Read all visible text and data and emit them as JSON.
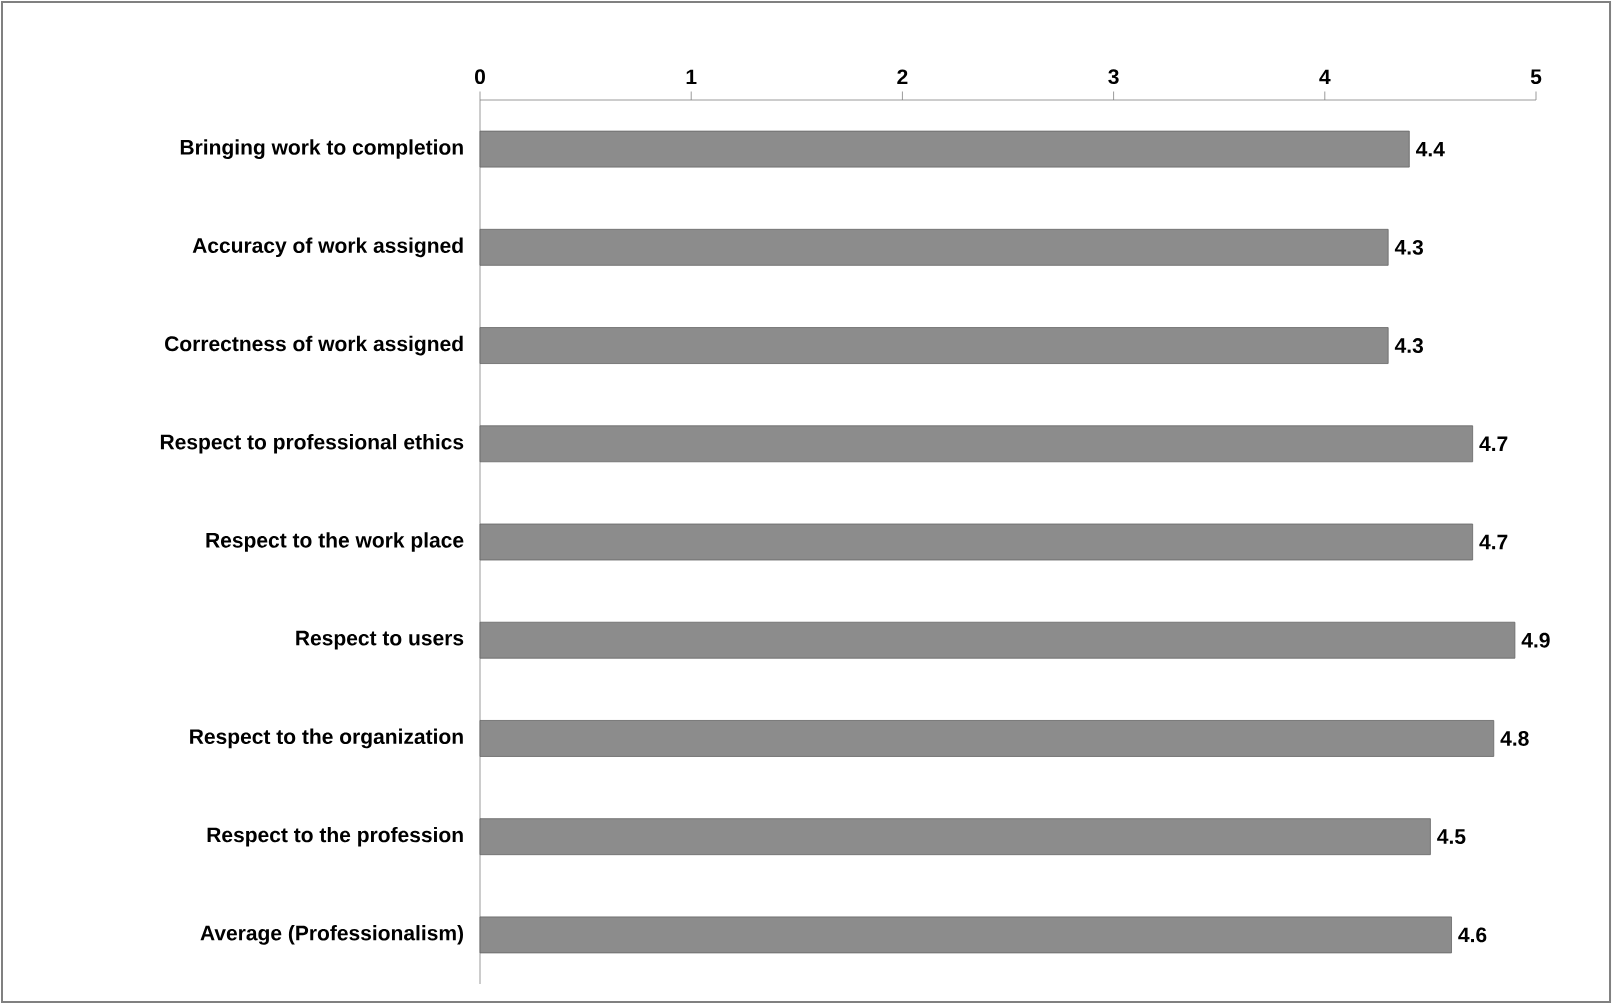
{
  "chart_data": {
    "type": "bar",
    "orientation": "horizontal",
    "categories": [
      "Bringing work to completion",
      "Accuracy of work assigned",
      "Correctness of work assigned",
      "Respect to professional ethics",
      "Respect to the work place",
      "Respect to users",
      "Respect to the organization",
      "Respect to the profession",
      "Average (Professionalism)"
    ],
    "values": [
      4.4,
      4.3,
      4.3,
      4.7,
      4.7,
      4.9,
      4.8,
      4.5,
      4.6
    ],
    "color": "#8c8c8c",
    "xlim": [
      0,
      5
    ],
    "xticks": [
      0,
      1,
      2,
      3,
      4,
      5
    ],
    "data_labels": true
  }
}
